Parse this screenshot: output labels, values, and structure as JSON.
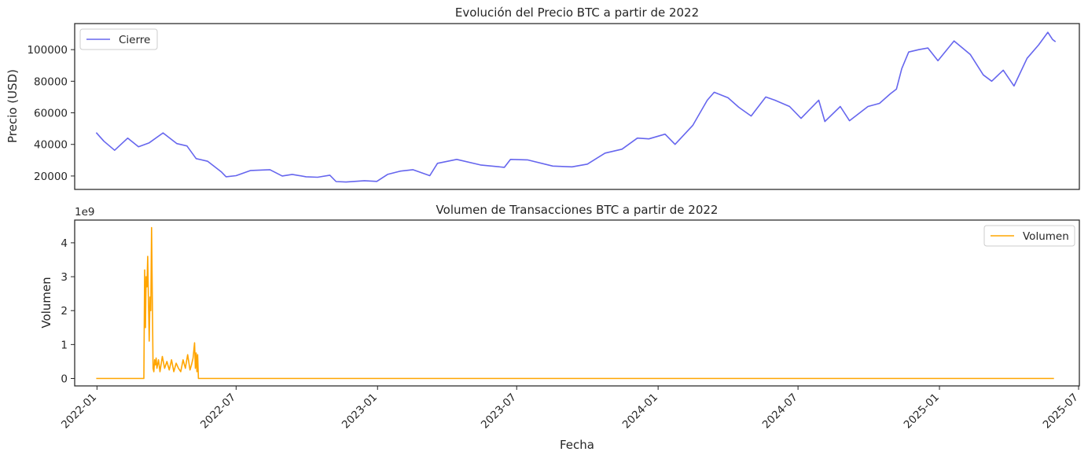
{
  "chart_data": [
    {
      "type": "line",
      "title": "Evolución del Precio BTC a partir de 2022",
      "xlabel": "",
      "ylabel": "Precio (USD)",
      "ylim": [
        11500,
        116500
      ],
      "xlim": [
        "2021-12-03",
        "2025-07-02"
      ],
      "y_ticks": [
        20000,
        40000,
        60000,
        80000,
        100000
      ],
      "y_tick_labels": [
        "20000",
        "40000",
        "60000",
        "80000",
        "100000"
      ],
      "grid": false,
      "legend": {
        "position": "top-left",
        "entries": [
          "Cierre"
        ]
      },
      "series": [
        {
          "name": "Cierre",
          "color": "#6666ee",
          "x": [
            "2021-12-31",
            "2022-01-10",
            "2022-01-24",
            "2022-02-10",
            "2022-02-24",
            "2022-03-10",
            "2022-03-28",
            "2022-04-15",
            "2022-04-28",
            "2022-05-10",
            "2022-05-25",
            "2022-06-12",
            "2022-06-18",
            "2022-07-01",
            "2022-07-20",
            "2022-08-14",
            "2022-08-30",
            "2022-09-12",
            "2022-09-30",
            "2022-10-15",
            "2022-10-31",
            "2022-11-08",
            "2022-11-21",
            "2022-12-15",
            "2022-12-31",
            "2023-01-14",
            "2023-01-31",
            "2023-02-16",
            "2023-03-10",
            "2023-03-20",
            "2023-04-14",
            "2023-05-15",
            "2023-06-15",
            "2023-06-23",
            "2023-07-15",
            "2023-08-17",
            "2023-09-11",
            "2023-10-01",
            "2023-10-24",
            "2023-11-15",
            "2023-12-05",
            "2023-12-20",
            "2024-01-10",
            "2024-01-23",
            "2024-02-15",
            "2024-03-05",
            "2024-03-14",
            "2024-04-01",
            "2024-04-15",
            "2024-05-01",
            "2024-05-20",
            "2024-06-01",
            "2024-06-20",
            "2024-07-05",
            "2024-07-28",
            "2024-08-05",
            "2024-08-25",
            "2024-09-06",
            "2024-09-30",
            "2024-10-15",
            "2024-10-29",
            "2024-11-06",
            "2024-11-13",
            "2024-11-22",
            "2024-12-05",
            "2024-12-17",
            "2024-12-30",
            "2025-01-20",
            "2025-02-10",
            "2025-02-27",
            "2025-03-10",
            "2025-03-25",
            "2025-04-08",
            "2025-04-25",
            "2025-05-10",
            "2025-05-22",
            "2025-05-28",
            "2025-06-01"
          ],
          "y": [
            47500,
            42000,
            36300,
            44000,
            38500,
            41000,
            47300,
            40500,
            39000,
            31000,
            29300,
            22500,
            19500,
            20200,
            23500,
            24000,
            20000,
            21000,
            19500,
            19200,
            20500,
            16500,
            16200,
            17000,
            16600,
            21000,
            23100,
            24000,
            20200,
            28000,
            30500,
            27000,
            25500,
            30500,
            30200,
            26300,
            25800,
            27500,
            34500,
            37000,
            44000,
            43500,
            46500,
            40000,
            52000,
            68000,
            73000,
            69500,
            63500,
            58000,
            70000,
            68000,
            64000,
            56500,
            68000,
            54500,
            64000,
            55000,
            64000,
            66000,
            72000,
            75000,
            88000,
            98500,
            100000,
            101000,
            93000,
            105500,
            97000,
            84000,
            80000,
            87000,
            77000,
            94500,
            103000,
            111000,
            106500,
            105000
          ]
        }
      ]
    },
    {
      "type": "line",
      "title": "Volumen de Transacciones BTC a partir de 2022",
      "xlabel": "Fecha",
      "ylabel": "Volumen",
      "y_offset_label": "1e9",
      "ylim": [
        -0.22,
        4.67
      ],
      "xlim": [
        "2021-12-03",
        "2025-07-02"
      ],
      "y_ticks": [
        0,
        1,
        2,
        3,
        4
      ],
      "y_tick_labels": [
        "0",
        "1",
        "2",
        "3",
        "4"
      ],
      "x_ticks": [
        "2022-01-01",
        "2022-07-01",
        "2023-01-01",
        "2023-07-01",
        "2024-01-01",
        "2024-07-01",
        "2025-01-01",
        "2025-07-01"
      ],
      "x_tick_labels": [
        "2022-01",
        "2022-07",
        "2023-01",
        "2023-07",
        "2024-01",
        "2024-07",
        "2025-01",
        "2025-07"
      ],
      "grid": false,
      "legend": {
        "position": "top-right",
        "entries": [
          "Volumen"
        ]
      },
      "series": [
        {
          "name": "Volumen",
          "color": "#ffa500",
          "x": [
            "2021-12-31",
            "2022-03-03",
            "2022-03-04",
            "2022-03-05",
            "2022-03-06",
            "2022-03-07",
            "2022-03-08",
            "2022-03-09",
            "2022-03-10",
            "2022-03-11",
            "2022-03-12",
            "2022-03-13",
            "2022-03-14",
            "2022-03-15",
            "2022-03-16",
            "2022-03-17",
            "2022-03-18",
            "2022-03-19",
            "2022-03-20",
            "2022-03-22",
            "2022-03-24",
            "2022-03-27",
            "2022-03-30",
            "2022-04-02",
            "2022-04-05",
            "2022-04-08",
            "2022-04-11",
            "2022-04-14",
            "2022-04-17",
            "2022-04-20",
            "2022-04-23",
            "2022-04-26",
            "2022-04-29",
            "2022-05-02",
            "2022-05-04",
            "2022-05-06",
            "2022-05-08",
            "2022-05-09",
            "2022-05-10",
            "2022-05-11",
            "2022-05-12",
            "2022-05-13",
            "2022-05-14",
            "2025-05-30"
          ],
          "y": [
            0,
            0,
            3.2,
            1.5,
            3.0,
            2.7,
            3.6,
            2.2,
            1.1,
            2.4,
            2.0,
            4.45,
            2.3,
            0.3,
            0.2,
            0.55,
            0.4,
            0.6,
            0.3,
            0.55,
            0.2,
            0.65,
            0.3,
            0.5,
            0.25,
            0.55,
            0.2,
            0.45,
            0.3,
            0.2,
            0.55,
            0.3,
            0.7,
            0.25,
            0.4,
            0.6,
            1.05,
            0.3,
            0.75,
            0.2,
            0.7,
            0,
            0,
            0
          ]
        }
      ]
    }
  ]
}
